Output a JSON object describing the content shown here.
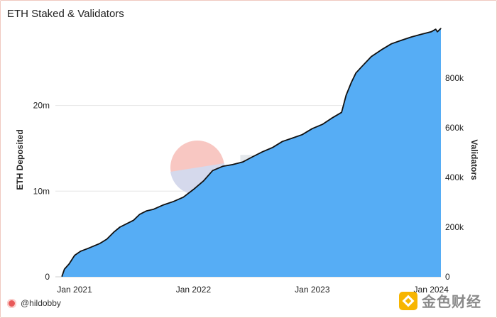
{
  "title": "ETH Staked & Validators",
  "watermark": "Dune",
  "author": "@hildobby",
  "brand": "金色财经",
  "colors": {
    "area": "#56adf5",
    "line": "#111111",
    "grid": "#e6e6e6",
    "logo_top": "#f8c7c2",
    "logo_bottom": "#d5d9ec"
  },
  "chart_data": {
    "type": "area",
    "title": "ETH Staked & Validators",
    "ylabel": "ETH Deposited",
    "y2label": "Validators",
    "xlim": [
      "2020-11-03",
      "2024-01-31"
    ],
    "ylim": [
      0,
      29000000
    ],
    "y2lim": [
      0,
      1000000
    ],
    "x_ticks": [
      "Jan 2021",
      "Jan 2022",
      "Jan 2023",
      "Jan 2024"
    ],
    "y_ticks": [
      "0",
      "10m",
      "20m"
    ],
    "y2_ticks": [
      "0",
      "200k",
      "400k",
      "600k",
      "800k"
    ],
    "grid": true,
    "series": [
      {
        "name": "ETH Deposited",
        "x": [
          "2020-11-23",
          "2020-12-01",
          "2020-12-15",
          "2021-01-01",
          "2021-01-20",
          "2021-02-10",
          "2021-03-01",
          "2021-03-20",
          "2021-04-10",
          "2021-05-01",
          "2021-05-20",
          "2021-06-10",
          "2021-07-01",
          "2021-07-20",
          "2021-08-10",
          "2021-09-01",
          "2021-10-01",
          "2021-11-01",
          "2021-12-01",
          "2022-01-01",
          "2022-02-01",
          "2022-03-01",
          "2022-04-01",
          "2022-05-01",
          "2022-06-01",
          "2022-07-01",
          "2022-08-01",
          "2022-09-01",
          "2022-10-01",
          "2022-11-01",
          "2022-12-01",
          "2023-01-01",
          "2023-02-01",
          "2023-03-01",
          "2023-04-01",
          "2023-04-15",
          "2023-05-01",
          "2023-05-15",
          "2023-06-01",
          "2023-07-01",
          "2023-08-01",
          "2023-09-01",
          "2023-10-01",
          "2023-11-01",
          "2023-12-01",
          "2024-01-01",
          "2024-01-15",
          "2024-01-20",
          "2024-01-31"
        ],
        "values": [
          0.05,
          0.9,
          1.5,
          2.5,
          3.0,
          3.3,
          3.6,
          3.9,
          4.4,
          5.2,
          5.8,
          6.2,
          6.6,
          7.3,
          7.7,
          7.9,
          8.4,
          8.8,
          9.3,
          10.2,
          11.2,
          12.4,
          12.9,
          13.1,
          13.4,
          14.0,
          14.6,
          15.1,
          15.8,
          16.2,
          16.6,
          17.3,
          17.8,
          18.5,
          19.2,
          21.2,
          22.7,
          23.8,
          24.5,
          25.7,
          26.5,
          27.2,
          27.6,
          28.0,
          28.3,
          28.6,
          28.9,
          28.6,
          29.0
        ]
      }
    ]
  }
}
